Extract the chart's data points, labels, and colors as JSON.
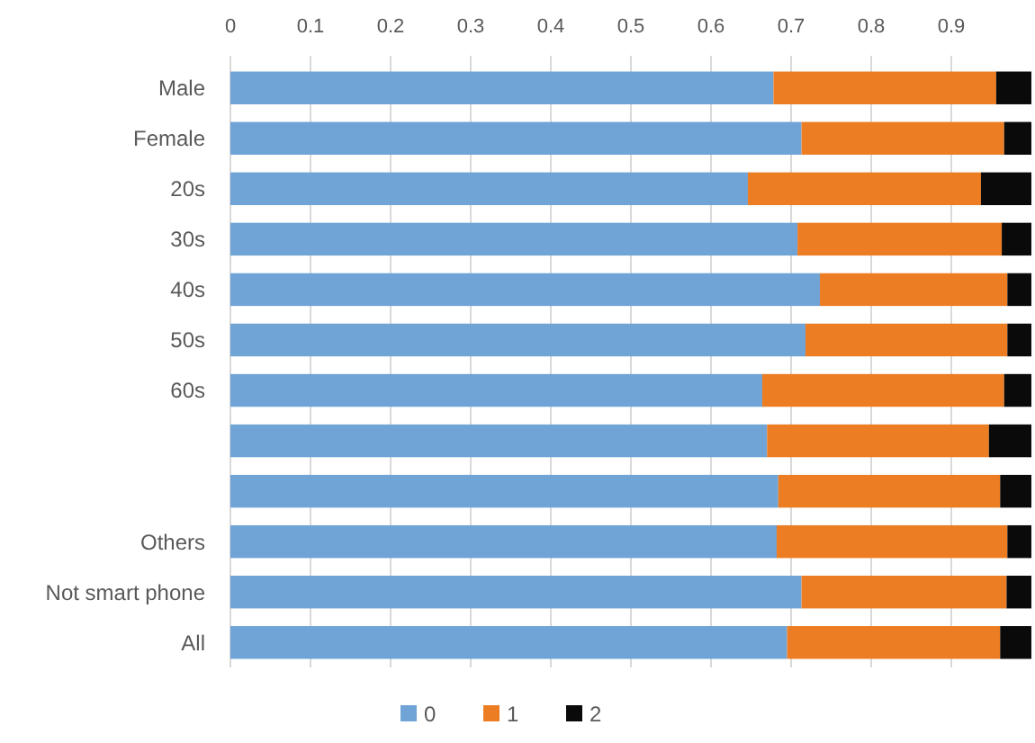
{
  "chart_data": {
    "type": "bar",
    "orientation": "horizontal",
    "stacked": true,
    "categories": [
      "Male",
      "Female",
      "20s",
      "30s",
      "40s",
      "50s",
      "60s",
      null,
      null,
      "Others",
      "Not smart phone",
      "All"
    ],
    "series": [
      {
        "name": "0",
        "color": "#70a3d6",
        "values": [
          0.678,
          0.713,
          0.646,
          0.708,
          0.736,
          0.718,
          0.664,
          0.67,
          0.684,
          0.682,
          0.713,
          0.695
        ]
      },
      {
        "name": "1",
        "color": "#ed7d22",
        "values": [
          0.278,
          0.253,
          0.291,
          0.255,
          0.234,
          0.252,
          0.302,
          0.277,
          0.277,
          0.288,
          0.256,
          0.266
        ]
      },
      {
        "name": "2",
        "color": "#0a0a0a",
        "values": [
          0.044,
          0.034,
          0.063,
          0.037,
          0.03,
          0.03,
          0.034,
          0.053,
          0.039,
          0.03,
          0.031,
          0.039
        ]
      }
    ],
    "xlim": [
      0,
      1
    ],
    "xticks": [
      0,
      0.1,
      0.2,
      0.3,
      0.4,
      0.5,
      0.6,
      0.7,
      0.8,
      0.9
    ],
    "grid": "x",
    "legend": "bottom"
  }
}
